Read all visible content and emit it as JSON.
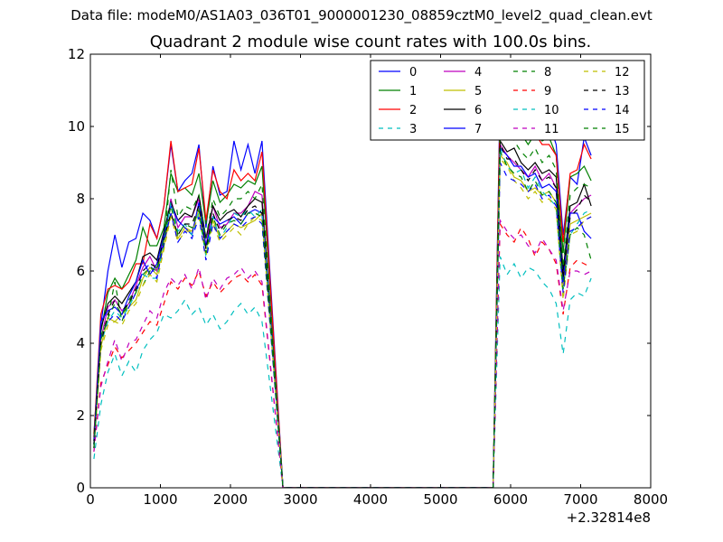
{
  "suptitle": "Data file: modeM0/AS1A03_036T01_9000001230_08859cztM0_level2_quad_clean.evt",
  "chart_data": {
    "type": "line",
    "title": "Quadrant 2 module wise count rates with 100.0s bins.",
    "xlabel": "",
    "ylabel": "",
    "x_offset_label": "+2.32814e8",
    "xlim": [
      0,
      8000
    ],
    "ylim": [
      0,
      12
    ],
    "x_ticks": [
      0,
      1000,
      2000,
      3000,
      4000,
      5000,
      6000,
      7000,
      8000
    ],
    "y_ticks": [
      0,
      2,
      4,
      6,
      8,
      10,
      12
    ],
    "legend_position": "top-right",
    "legend_columns": 4,
    "segment1": {
      "x_start": 50,
      "step": 100,
      "count": 25
    },
    "gap": {
      "zero_x": [
        2750,
        5750
      ]
    },
    "segment2": {
      "x_start": 5850,
      "step": 100,
      "count": 14
    },
    "series": [
      {
        "name": "0",
        "color": "#0000ff",
        "dash": "solid",
        "seg1": [
          1.3,
          4.5,
          6.0,
          7.0,
          6.1,
          6.8,
          6.9,
          7.6,
          7.4,
          6.9,
          7.8,
          9.5,
          8.2,
          8.5,
          8.7,
          9.5,
          7.2,
          8.9,
          8.1,
          8.2,
          9.6,
          8.8,
          9.5,
          8.7,
          9.6
        ],
        "seg2": [
          11.0,
          10.9,
          10.7,
          10.5,
          10.0,
          10.2,
          10.3,
          10.1,
          9.5,
          7.0,
          8.6,
          8.4,
          9.7,
          9.2
        ]
      },
      {
        "name": "1",
        "color": "#008000",
        "dash": "solid",
        "seg1": [
          1.5,
          4.3,
          5.4,
          5.8,
          5.5,
          5.9,
          6.3,
          7.2,
          6.7,
          6.7,
          7.2,
          8.7,
          8.2,
          8.3,
          8.1,
          8.7,
          7.3,
          8.5,
          7.9,
          8.1,
          8.4,
          8.3,
          8.5,
          8.4,
          8.9
        ],
        "seg2": [
          10.5,
          10.3,
          10.0,
          9.8,
          9.5,
          9.8,
          9.6,
          9.7,
          9.2,
          6.5,
          8.6,
          8.7,
          8.9,
          8.5
        ]
      },
      {
        "name": "2",
        "color": "#ff0000",
        "dash": "solid",
        "seg1": [
          1.4,
          4.8,
          5.5,
          5.6,
          5.5,
          5.7,
          6.2,
          6.2,
          7.3,
          6.9,
          7.8,
          9.6,
          8.2,
          8.3,
          8.4,
          9.4,
          7.4,
          8.8,
          8.2,
          8.0,
          8.8,
          8.5,
          8.7,
          8.5,
          9.3
        ],
        "seg2": [
          10.7,
          11.0,
          10.5,
          10.2,
          10.0,
          9.8,
          9.5,
          9.5,
          9.2,
          6.8,
          8.7,
          8.8,
          9.5,
          9.1
        ]
      },
      {
        "name": "3",
        "color": "#00bfbf",
        "dash": "dash",
        "seg1": [
          0.8,
          2.3,
          3.2,
          3.7,
          3.1,
          3.5,
          3.2,
          3.8,
          4.1,
          4.3,
          4.8,
          4.7,
          4.9,
          5.2,
          4.8,
          5.0,
          4.5,
          4.8,
          4.4,
          4.6,
          4.9,
          5.1,
          4.8,
          5.0,
          4.6
        ],
        "seg2": [
          6.4,
          5.9,
          6.2,
          5.8,
          6.1,
          6.0,
          5.7,
          5.5,
          5.1,
          3.7,
          5.2,
          5.4,
          5.3,
          5.8
        ]
      },
      {
        "name": "4",
        "color": "#bf00bf",
        "dash": "solid",
        "seg1": [
          1.2,
          4.1,
          5.0,
          5.2,
          4.9,
          5.1,
          5.6,
          6.1,
          6.4,
          6.0,
          6.9,
          8.0,
          7.2,
          7.5,
          7.5,
          8.0,
          6.7,
          7.8,
          7.2,
          7.3,
          7.6,
          7.6,
          7.8,
          8.2,
          8.1
        ],
        "seg2": [
          9.5,
          9.2,
          9.0,
          8.8,
          8.6,
          8.9,
          8.5,
          8.7,
          8.3,
          5.9,
          7.6,
          7.8,
          8.0,
          8.1
        ]
      },
      {
        "name": "5",
        "color": "#bfbf00",
        "dash": "solid",
        "seg1": [
          1.1,
          3.9,
          4.7,
          4.6,
          4.8,
          5.0,
          5.2,
          5.8,
          6.1,
          5.9,
          6.7,
          7.6,
          6.9,
          7.2,
          7.1,
          7.7,
          6.6,
          7.4,
          6.9,
          7.1,
          7.3,
          7.2,
          7.3,
          7.4,
          7.6
        ],
        "seg2": [
          9.2,
          9.0,
          8.6,
          8.5,
          8.2,
          8.3,
          8.1,
          8.2,
          7.9,
          5.6,
          7.3,
          7.4,
          7.5,
          7.6
        ]
      },
      {
        "name": "6",
        "color": "#000000",
        "dash": "solid",
        "seg1": [
          1.3,
          4.4,
          5.1,
          5.3,
          5.1,
          5.4,
          5.7,
          6.4,
          6.5,
          6.3,
          7.1,
          7.9,
          7.4,
          7.6,
          7.5,
          8.1,
          6.9,
          7.8,
          7.4,
          7.6,
          7.7,
          7.5,
          7.8,
          8.0,
          7.9
        ],
        "seg2": [
          9.6,
          9.3,
          9.4,
          9.0,
          8.8,
          9.0,
          8.7,
          8.8,
          8.6,
          6.0,
          7.8,
          7.9,
          8.4,
          7.8
        ]
      },
      {
        "name": "7",
        "color": "#0000ff",
        "dash": "solid",
        "seg1": [
          1.2,
          4.6,
          4.9,
          5.0,
          4.8,
          5.3,
          5.7,
          6.3,
          5.9,
          6.2,
          7.0,
          7.8,
          7.4,
          7.2,
          7.0,
          7.9,
          6.7,
          7.5,
          7.3,
          7.4,
          7.5,
          7.3,
          7.6,
          7.7,
          7.6
        ],
        "seg2": [
          9.4,
          9.2,
          8.9,
          8.9,
          8.6,
          8.7,
          8.3,
          8.4,
          8.2,
          5.7,
          7.6,
          7.6,
          7.1,
          6.9
        ]
      },
      {
        "name": "8",
        "color": "#008000",
        "dash": "dash",
        "seg1": [
          1.2,
          4.2,
          4.7,
          5.7,
          4.6,
          5.2,
          5.5,
          5.6,
          6.0,
          6.1,
          6.7,
          8.8,
          7.5,
          7.8,
          7.7,
          8.1,
          6.9,
          8.0,
          7.5,
          7.7,
          8.0,
          8.0,
          8.2,
          8.0,
          8.4
        ],
        "seg2": [
          10.2,
          9.9,
          9.6,
          9.3,
          9.1,
          9.4,
          9.0,
          9.2,
          8.8,
          6.1,
          8.1,
          8.3,
          8.4,
          8.3
        ]
      },
      {
        "name": "9",
        "color": "#ff0000",
        "dash": "dash",
        "seg1": [
          1.0,
          2.9,
          3.4,
          3.9,
          3.6,
          3.8,
          4.0,
          4.3,
          4.6,
          4.5,
          5.1,
          5.7,
          5.5,
          5.8,
          5.6,
          6.0,
          5.3,
          5.7,
          5.4,
          5.6,
          5.8,
          5.9,
          5.7,
          5.9,
          5.6
        ],
        "seg2": [
          7.3,
          7.0,
          6.8,
          7.2,
          6.9,
          6.4,
          6.8,
          6.6,
          6.2,
          4.8,
          6.1,
          6.3,
          6.2,
          6.1
        ]
      },
      {
        "name": "10",
        "color": "#00bfbf",
        "dash": "dash",
        "seg1": [
          1.2,
          4.0,
          4.6,
          4.9,
          4.7,
          5.0,
          5.4,
          5.9,
          5.8,
          5.8,
          6.8,
          7.9,
          7.1,
          7.3,
          7.0,
          7.6,
          6.4,
          7.5,
          6.9,
          7.2,
          7.6,
          7.5,
          7.7,
          7.5,
          7.7
        ],
        "seg2": [
          9.4,
          8.9,
          8.7,
          8.8,
          8.3,
          8.6,
          8.2,
          8.0,
          7.8,
          5.3,
          7.0,
          7.3,
          7.6,
          7.7
        ]
      },
      {
        "name": "11",
        "color": "#bf00bf",
        "dash": "dash",
        "seg1": [
          1.0,
          2.8,
          3.5,
          4.1,
          3.5,
          4.0,
          4.1,
          4.5,
          4.9,
          4.7,
          5.4,
          5.8,
          5.6,
          5.9,
          5.5,
          6.1,
          5.2,
          5.8,
          5.5,
          5.8,
          5.9,
          6.1,
          5.8,
          6.0,
          5.7
        ],
        "seg2": [
          7.4,
          7.1,
          6.9,
          7.0,
          6.7,
          6.5,
          6.9,
          6.6,
          6.3,
          4.9,
          6.0,
          6.0,
          5.9,
          6.0
        ]
      },
      {
        "name": "12",
        "color": "#bfbf00",
        "dash": "dash",
        "seg1": [
          1.1,
          3.8,
          4.5,
          4.6,
          4.5,
          4.9,
          5.1,
          5.6,
          5.9,
          5.7,
          6.6,
          7.5,
          6.8,
          7.1,
          7.1,
          7.5,
          6.4,
          7.3,
          6.8,
          7.0,
          7.2,
          7.0,
          7.3,
          7.5,
          7.4
        ],
        "seg2": [
          9.1,
          8.9,
          8.5,
          8.3,
          8.0,
          8.2,
          7.9,
          8.0,
          7.7,
          5.2,
          7.0,
          7.1,
          7.4,
          7.5
        ]
      },
      {
        "name": "13",
        "color": "#000000",
        "dash": "dash",
        "seg1": [
          1.2,
          4.0,
          4.8,
          5.2,
          4.9,
          5.1,
          5.5,
          6.0,
          6.2,
          6.1,
          6.9,
          7.6,
          7.0,
          7.3,
          7.3,
          7.8,
          6.6,
          7.6,
          7.1,
          7.4,
          7.5,
          7.4,
          7.7,
          7.8,
          7.6
        ],
        "seg2": [
          9.5,
          9.1,
          9.1,
          8.8,
          8.5,
          8.8,
          8.5,
          8.6,
          8.3,
          5.8,
          7.5,
          7.7,
          8.1,
          7.9
        ]
      },
      {
        "name": "14",
        "color": "#0000ff",
        "dash": "dash",
        "seg1": [
          1.1,
          4.2,
          4.6,
          4.8,
          4.6,
          5.0,
          5.4,
          6.0,
          6.2,
          5.8,
          6.8,
          7.6,
          6.8,
          7.1,
          6.9,
          7.5,
          6.3,
          7.3,
          6.9,
          7.1,
          7.3,
          7.2,
          7.4,
          7.5,
          7.3
        ],
        "seg2": [
          9.0,
          8.6,
          8.5,
          8.4,
          8.2,
          8.4,
          8.0,
          8.1,
          7.8,
          5.4,
          7.1,
          7.2,
          7.4,
          7.5
        ]
      },
      {
        "name": "15",
        "color": "#008000",
        "dash": "dash",
        "seg1": [
          1.1,
          4.1,
          4.7,
          5.1,
          4.8,
          5.1,
          5.4,
          5.9,
          6.1,
          6.0,
          6.9,
          7.8,
          7.0,
          7.3,
          7.2,
          7.7,
          6.5,
          7.5,
          7.0,
          7.3,
          7.4,
          7.3,
          7.6,
          7.6,
          7.5
        ],
        "seg2": [
          9.3,
          8.9,
          8.7,
          8.6,
          8.2,
          8.5,
          8.1,
          8.2,
          7.9,
          5.5,
          7.0,
          7.2,
          7.0,
          6.3
        ]
      }
    ]
  }
}
